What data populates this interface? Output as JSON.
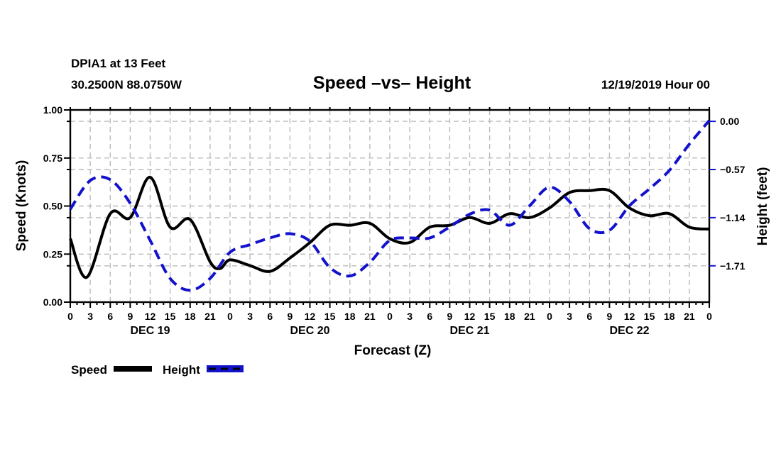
{
  "header": {
    "station": "DPIA1 at 13 Feet",
    "coordinates": "30.2500N 88.0750W",
    "title": "Speed –vs– Height",
    "run_datetime": "12/19/2019 Hour 00"
  },
  "legend": {
    "speed_label": "Speed",
    "height_label": "Height"
  },
  "colors": {
    "speed_line": "#000000",
    "height_line": "#1212cc",
    "grid_line": "#bbbbbb",
    "background": "#ffffff"
  },
  "chart_data": {
    "type": "line",
    "title": "Speed –vs– Height",
    "x_axis": {
      "label": "Forecast (Z)",
      "unit": "hours",
      "range_hours": [
        0,
        96
      ],
      "major_tick_every_hours": 3,
      "minor_tick_every_hours": 1,
      "tick_labels": [
        "0",
        "3",
        "6",
        "9",
        "12",
        "15",
        "18",
        "21",
        "0",
        "3",
        "6",
        "9",
        "12",
        "15",
        "18",
        "21",
        "0",
        "3",
        "6",
        "9",
        "12",
        "15",
        "18",
        "21",
        "0",
        "3",
        "6",
        "9",
        "12",
        "15",
        "18",
        "21",
        "0"
      ],
      "day_labels": [
        "DEC 19",
        "DEC 20",
        "DEC 21",
        "DEC 22"
      ],
      "day_label_hours": [
        12,
        36,
        60,
        84
      ]
    },
    "left_axis": {
      "label": "Speed (Knots)",
      "min": 0.0,
      "max": 1.0,
      "ticks": [
        0.0,
        0.25,
        0.5,
        0.75,
        1.0
      ],
      "tick_labels": [
        "0.00",
        "0.25",
        "0.50",
        "0.75",
        "1.00"
      ],
      "interior_grid_ticks": [
        0.25,
        0.5,
        0.75
      ]
    },
    "right_axis": {
      "label": "Height (feet)",
      "min": -2.14,
      "max": 0.135,
      "ticks": [
        0.0,
        -0.57,
        -1.14,
        -1.71
      ],
      "tick_labels": [
        "0.00",
        "−0.57",
        "−1.14",
        "−1.71"
      ]
    },
    "grid": {
      "show": true,
      "dash": [
        7,
        5
      ]
    },
    "legend_position": "bottom-left",
    "series": [
      {
        "name": "Speed",
        "axis": "left",
        "color": "#000000",
        "line_style": "solid",
        "x_hours": [
          0,
          2.5,
          6,
          9,
          12,
          15,
          18,
          21,
          22.5,
          24,
          27,
          30,
          33,
          36,
          39,
          42,
          45,
          48,
          51,
          54,
          57,
          60,
          63,
          66,
          69,
          72,
          75,
          78,
          81,
          84,
          87,
          90,
          93,
          96
        ],
        "values": [
          0.33,
          0.13,
          0.46,
          0.44,
          0.65,
          0.39,
          0.43,
          0.21,
          0.175,
          0.22,
          0.19,
          0.16,
          0.23,
          0.31,
          0.4,
          0.4,
          0.41,
          0.33,
          0.31,
          0.39,
          0.4,
          0.44,
          0.41,
          0.46,
          0.44,
          0.49,
          0.57,
          0.58,
          0.58,
          0.49,
          0.45,
          0.46,
          0.39,
          0.38
        ]
      },
      {
        "name": "Height",
        "axis": "right",
        "color": "#1212cc",
        "line_style": "dashed",
        "x_hours": [
          0,
          3,
          6,
          9,
          12,
          15,
          18,
          21,
          24,
          27,
          30,
          33,
          36,
          39,
          42,
          45,
          48,
          51,
          54,
          57,
          60,
          63,
          66,
          69,
          72,
          75,
          78,
          81,
          84,
          87,
          90,
          93,
          96
        ],
        "values": [
          -1.04,
          -0.7,
          -0.69,
          -0.97,
          -1.41,
          -1.86,
          -2.0,
          -1.86,
          -1.55,
          -1.46,
          -1.38,
          -1.33,
          -1.42,
          -1.73,
          -1.83,
          -1.67,
          -1.41,
          -1.38,
          -1.38,
          -1.25,
          -1.1,
          -1.05,
          -1.23,
          -1.0,
          -0.78,
          -0.95,
          -1.27,
          -1.29,
          -1.0,
          -0.8,
          -0.58,
          -0.27,
          0.01
        ]
      }
    ]
  }
}
